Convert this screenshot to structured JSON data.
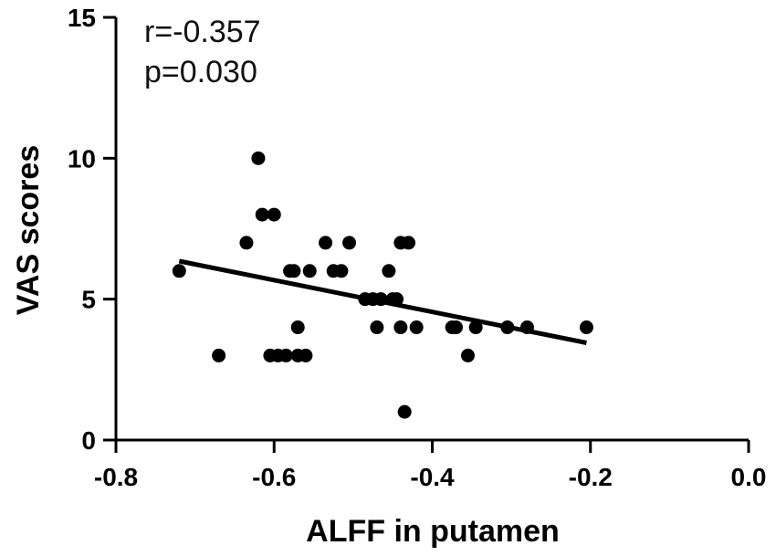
{
  "chart_data": {
    "type": "scatter",
    "title": "",
    "xlabel": "ALFF in putamen",
    "ylabel": "VAS scores",
    "xlim": [
      -0.8,
      0.0
    ],
    "ylim": [
      0,
      15
    ],
    "x_ticks": [
      -0.8,
      -0.6,
      -0.4,
      -0.2,
      0.0
    ],
    "x_tick_labels": [
      "-0.8",
      "-0.6",
      "-0.4",
      "-0.2",
      "0.0"
    ],
    "y_ticks": [
      0,
      5,
      10,
      15
    ],
    "y_tick_labels": [
      "0",
      "5",
      "10",
      "15"
    ],
    "annotations": [
      "r=-0.357",
      "p=0.030"
    ],
    "grid": false,
    "series": [
      {
        "points": [
          {
            "x": -0.72,
            "y": 6
          },
          {
            "x": -0.67,
            "y": 3
          },
          {
            "x": -0.635,
            "y": 7
          },
          {
            "x": -0.62,
            "y": 10
          },
          {
            "x": -0.615,
            "y": 8
          },
          {
            "x": -0.605,
            "y": 3
          },
          {
            "x": -0.6,
            "y": 8
          },
          {
            "x": -0.595,
            "y": 3
          },
          {
            "x": -0.585,
            "y": 3
          },
          {
            "x": -0.58,
            "y": 6
          },
          {
            "x": -0.575,
            "y": 6
          },
          {
            "x": -0.57,
            "y": 3
          },
          {
            "x": -0.57,
            "y": 4
          },
          {
            "x": -0.56,
            "y": 3
          },
          {
            "x": -0.555,
            "y": 6
          },
          {
            "x": -0.535,
            "y": 7
          },
          {
            "x": -0.525,
            "y": 6
          },
          {
            "x": -0.515,
            "y": 6
          },
          {
            "x": -0.505,
            "y": 7
          },
          {
            "x": -0.485,
            "y": 5
          },
          {
            "x": -0.475,
            "y": 5
          },
          {
            "x": -0.47,
            "y": 4
          },
          {
            "x": -0.465,
            "y": 5
          },
          {
            "x": -0.455,
            "y": 6
          },
          {
            "x": -0.45,
            "y": 5
          },
          {
            "x": -0.445,
            "y": 5
          },
          {
            "x": -0.44,
            "y": 4
          },
          {
            "x": -0.44,
            "y": 7
          },
          {
            "x": -0.435,
            "y": 1
          },
          {
            "x": -0.43,
            "y": 7
          },
          {
            "x": -0.42,
            "y": 4
          },
          {
            "x": -0.375,
            "y": 4
          },
          {
            "x": -0.37,
            "y": 4
          },
          {
            "x": -0.355,
            "y": 3
          },
          {
            "x": -0.345,
            "y": 4
          },
          {
            "x": -0.305,
            "y": 4
          },
          {
            "x": -0.28,
            "y": 4
          },
          {
            "x": -0.205,
            "y": 4
          }
        ]
      }
    ],
    "trend_line": {
      "x": [
        -0.72,
        -0.205
      ],
      "y": [
        6.35,
        3.45
      ]
    }
  }
}
